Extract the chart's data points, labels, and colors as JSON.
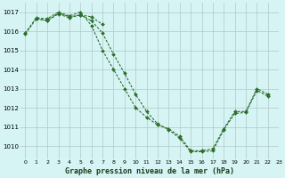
{
  "title": "Graphe pression niveau de la mer (hPa)",
  "background_color": "#d6f4f4",
  "grid_color": "#b0c8c8",
  "line_color": "#2d6e2d",
  "xlim": [
    -0.5,
    23
  ],
  "ylim": [
    1009.3,
    1017.5
  ],
  "yticks": [
    1010,
    1011,
    1012,
    1013,
    1014,
    1015,
    1016,
    1017
  ],
  "xticks": [
    0,
    1,
    2,
    3,
    4,
    5,
    6,
    7,
    8,
    9,
    10,
    11,
    12,
    13,
    14,
    15,
    16,
    17,
    18,
    19,
    20,
    21,
    22,
    23
  ],
  "series": [
    {
      "x": [
        0,
        1,
        2,
        3,
        4,
        5,
        6,
        7,
        8,
        9,
        10,
        11,
        12,
        13,
        14,
        15,
        16,
        17,
        18,
        19,
        20,
        21,
        22
      ],
      "y": [
        1015.9,
        1016.7,
        1016.65,
        1017.0,
        1016.8,
        1017.0,
        1016.3,
        1015.0,
        1014.0,
        1013.0,
        1012.0,
        1011.5,
        1011.1,
        1010.9,
        1010.5,
        1009.75,
        1009.75,
        1009.85,
        1010.9,
        1011.8,
        1011.8,
        1013.0,
        1012.7
      ]
    },
    {
      "x": [
        1,
        2,
        3,
        4,
        5,
        6,
        7
      ],
      "y": [
        1016.65,
        1016.55,
        1016.95,
        1016.75,
        1016.85,
        1016.75,
        1016.35
      ]
    },
    {
      "x": [
        0,
        1,
        2,
        3,
        4,
        5,
        6,
        7,
        8,
        9,
        10,
        11,
        12,
        13,
        14,
        15,
        16,
        17,
        18,
        19,
        20,
        21,
        22
      ],
      "y": [
        1015.85,
        1016.65,
        1016.55,
        1016.9,
        1016.7,
        1016.85,
        1016.55,
        1015.9,
        1014.8,
        1013.8,
        1012.7,
        1011.8,
        1011.15,
        1010.85,
        1010.4,
        1009.7,
        1009.7,
        1009.75,
        1010.85,
        1011.7,
        1011.75,
        1012.9,
        1012.6
      ]
    }
  ]
}
